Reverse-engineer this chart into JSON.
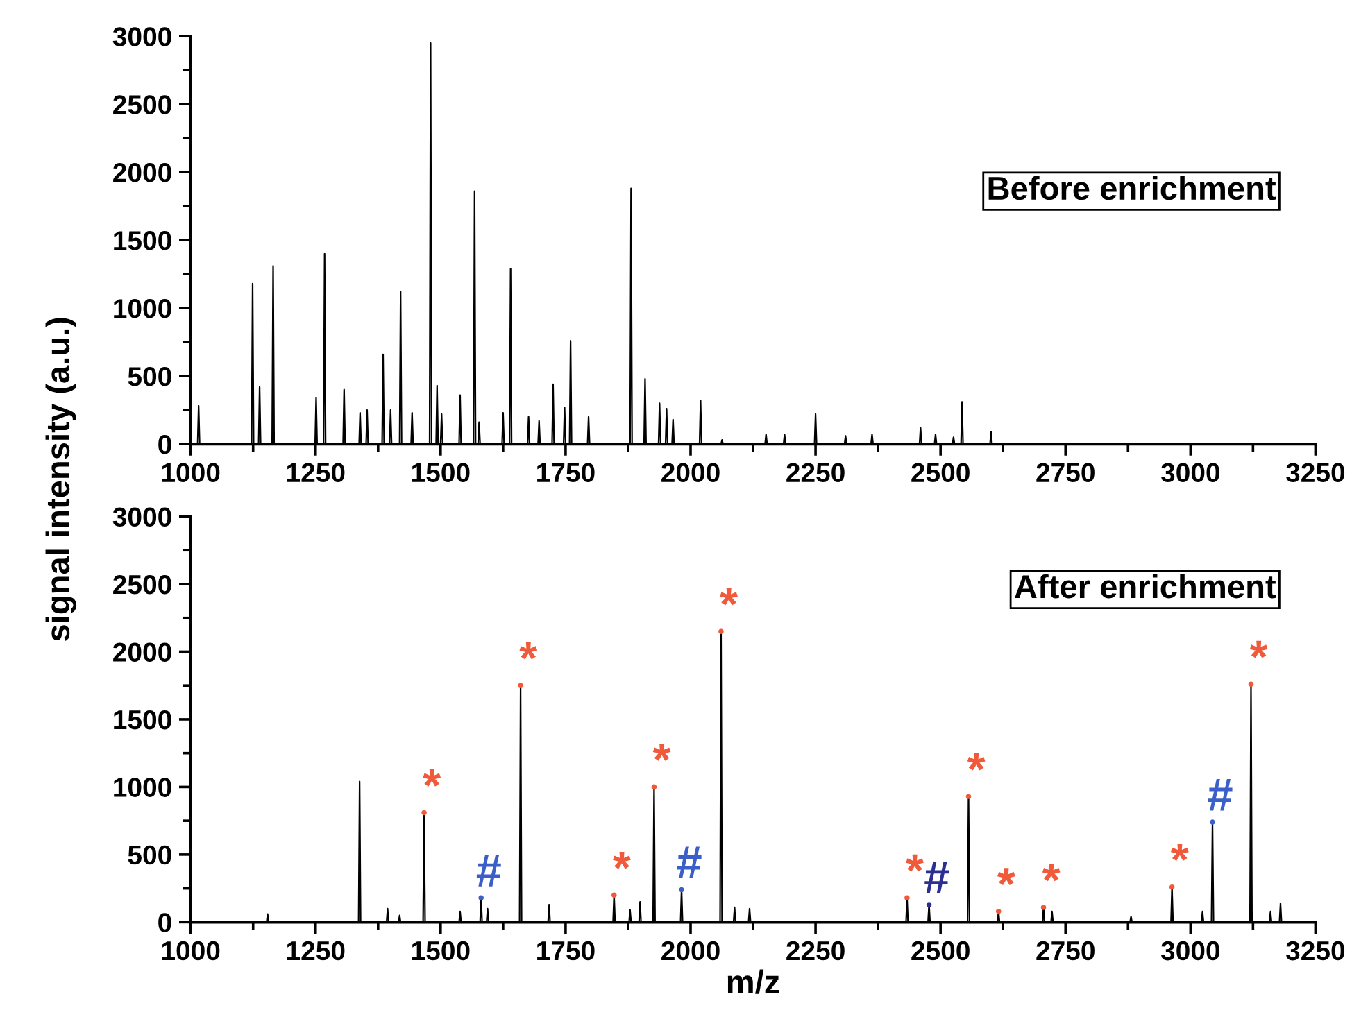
{
  "chart_data": [
    {
      "type": "line",
      "ylabel": "signal intensity (a.u.)",
      "xlim": [
        1000,
        3250
      ],
      "xticks": [
        1000,
        1250,
        1500,
        1750,
        2000,
        2250,
        2500,
        2750,
        3000,
        3250
      ],
      "ylim": [
        0,
        3000
      ],
      "yticks": [
        0,
        500,
        1000,
        1500,
        2000,
        2500,
        3000
      ],
      "grid": false,
      "legend": false,
      "marker": "none",
      "line_style": "solid",
      "annotations": [
        "Before enrichment"
      ],
      "series": [
        {
          "color": "#000000",
          "x": [
            1000,
            1014,
            1016,
            1018,
            1122,
            1124,
            1126,
            1136,
            1138,
            1140,
            1163,
            1165,
            1167,
            1249,
            1251,
            1253,
            1266,
            1268,
            1270,
            1305,
            1307,
            1309,
            1337,
            1339,
            1341,
            1351,
            1353,
            1355,
            1383,
            1385,
            1387,
            1398,
            1400,
            1402,
            1418,
            1420,
            1422,
            1441,
            1443,
            1445,
            1478,
            1480,
            1482,
            1491,
            1493,
            1495,
            1500,
            1502,
            1504,
            1537,
            1539,
            1541,
            1566,
            1568,
            1570,
            1575,
            1577,
            1579,
            1623,
            1625,
            1627,
            1638,
            1640,
            1642,
            1674,
            1676,
            1678,
            1695,
            1697,
            1699,
            1723,
            1725,
            1727,
            1746,
            1748,
            1750,
            1758,
            1760,
            1762,
            1794,
            1796,
            1798,
            1879,
            1881,
            1883,
            1907,
            1909,
            1911,
            1936,
            1938,
            1940,
            1950,
            1952,
            1954,
            1963,
            1965,
            1967,
            2018,
            2020,
            2022,
            2061,
            2063,
            2065,
            2149,
            2151,
            2153,
            2186,
            2188,
            2190,
            2248,
            2250,
            2252,
            2308,
            2310,
            2312,
            2361,
            2363,
            2365,
            2458,
            2460,
            2462,
            2488,
            2490,
            2492,
            2524,
            2526,
            2528,
            2541,
            2543,
            2545,
            2599,
            2601,
            2603,
            3250
          ],
          "values": [
            0,
            0,
            280,
            0,
            0,
            1180,
            0,
            0,
            420,
            0,
            0,
            1310,
            0,
            0,
            340,
            0,
            0,
            1400,
            0,
            0,
            400,
            0,
            0,
            230,
            0,
            0,
            250,
            0,
            0,
            660,
            0,
            0,
            250,
            0,
            0,
            1120,
            0,
            0,
            230,
            0,
            0,
            2950,
            0,
            0,
            430,
            0,
            0,
            220,
            0,
            0,
            360,
            0,
            0,
            1860,
            0,
            0,
            160,
            0,
            0,
            230,
            0,
            0,
            1290,
            0,
            0,
            200,
            0,
            0,
            170,
            0,
            0,
            440,
            0,
            0,
            270,
            0,
            0,
            760,
            0,
            0,
            200,
            0,
            0,
            1880,
            0,
            0,
            480,
            0,
            0,
            300,
            0,
            0,
            260,
            0,
            0,
            180,
            0,
            0,
            320,
            0,
            0,
            30,
            0,
            0,
            70,
            0,
            0,
            70,
            0,
            0,
            220,
            0,
            0,
            60,
            0,
            0,
            70,
            0,
            0,
            120,
            0,
            0,
            70,
            0,
            0,
            50,
            0,
            0,
            310,
            0,
            0,
            90,
            0,
            0
          ]
        }
      ]
    },
    {
      "type": "line",
      "xlabel": "m/z",
      "xlim": [
        1000,
        3250
      ],
      "xticks": [
        1000,
        1250,
        1500,
        1750,
        2000,
        2250,
        2500,
        2750,
        3000,
        3250
      ],
      "ylim": [
        0,
        3000
      ],
      "yticks": [
        0,
        500,
        1000,
        1500,
        2000,
        2500,
        3000
      ],
      "grid": false,
      "legend": false,
      "marker": "none",
      "line_style": "solid",
      "annotations": [
        "After enrichment"
      ],
      "series": [
        {
          "color": "#000000",
          "x": [
            1000,
            1152,
            1154,
            1156,
            1336,
            1338,
            1340,
            1392,
            1394,
            1396,
            1416,
            1418,
            1420,
            1465,
            1467,
            1469,
            1537,
            1539,
            1541,
            1579,
            1581,
            1583,
            1592,
            1594,
            1596,
            1658,
            1660,
            1662,
            1715,
            1717,
            1719,
            1845,
            1847,
            1849,
            1877,
            1879,
            1881,
            1897,
            1899,
            1901,
            1925,
            1927,
            1929,
            1980,
            1982,
            1984,
            2059,
            2061,
            2063,
            2086,
            2088,
            2090,
            2116,
            2118,
            2120,
            2431,
            2433,
            2435,
            2475,
            2477,
            2479,
            2554,
            2556,
            2558,
            2614,
            2616,
            2618,
            2704,
            2706,
            2708,
            2721,
            2723,
            2725,
            2879,
            2881,
            2883,
            2961,
            2963,
            2965,
            3022,
            3024,
            3026,
            3042,
            3044,
            3046,
            3119,
            3121,
            3123,
            3158,
            3160,
            3162,
            3178,
            3180,
            3182,
            3250
          ],
          "values": [
            0,
            0,
            60,
            0,
            0,
            1040,
            0,
            0,
            100,
            0,
            0,
            50,
            0,
            0,
            810,
            0,
            0,
            80,
            0,
            0,
            180,
            0,
            0,
            100,
            0,
            0,
            1750,
            0,
            0,
            130,
            0,
            0,
            200,
            0,
            0,
            90,
            0,
            0,
            150,
            0,
            0,
            1000,
            0,
            0,
            240,
            0,
            0,
            2150,
            0,
            0,
            110,
            0,
            0,
            100,
            0,
            0,
            180,
            0,
            0,
            130,
            0,
            0,
            930,
            0,
            0,
            80,
            0,
            0,
            110,
            0,
            0,
            80,
            0,
            0,
            40,
            0,
            0,
            260,
            0,
            0,
            80,
            0,
            0,
            740,
            0,
            0,
            1760,
            0,
            0,
            80,
            0,
            0,
            140,
            0,
            0
          ]
        },
        {
          "type": "scatter",
          "color": "#f05a3a",
          "x": [
            1467,
            1660,
            1847,
            1927,
            2061,
            2433,
            2556,
            2616,
            2706,
            2963,
            3121
          ],
          "values": [
            810,
            1750,
            200,
            1000,
            2150,
            180,
            930,
            80,
            110,
            260,
            1760
          ],
          "value_labels": [
            "*",
            "*",
            "*",
            "*",
            "*",
            "*",
            "*",
            "*",
            "*",
            "*",
            "*"
          ]
        },
        {
          "type": "scatter",
          "color": "#3a5fc8",
          "x": [
            1581,
            1982,
            3044
          ],
          "values": [
            180,
            240,
            740
          ],
          "value_labels": [
            "#",
            "#",
            "#"
          ]
        },
        {
          "type": "scatter",
          "color": "#2b2f8f",
          "x": [
            2477
          ],
          "values": [
            130
          ],
          "value_labels": [
            "#"
          ]
        }
      ]
    }
  ]
}
